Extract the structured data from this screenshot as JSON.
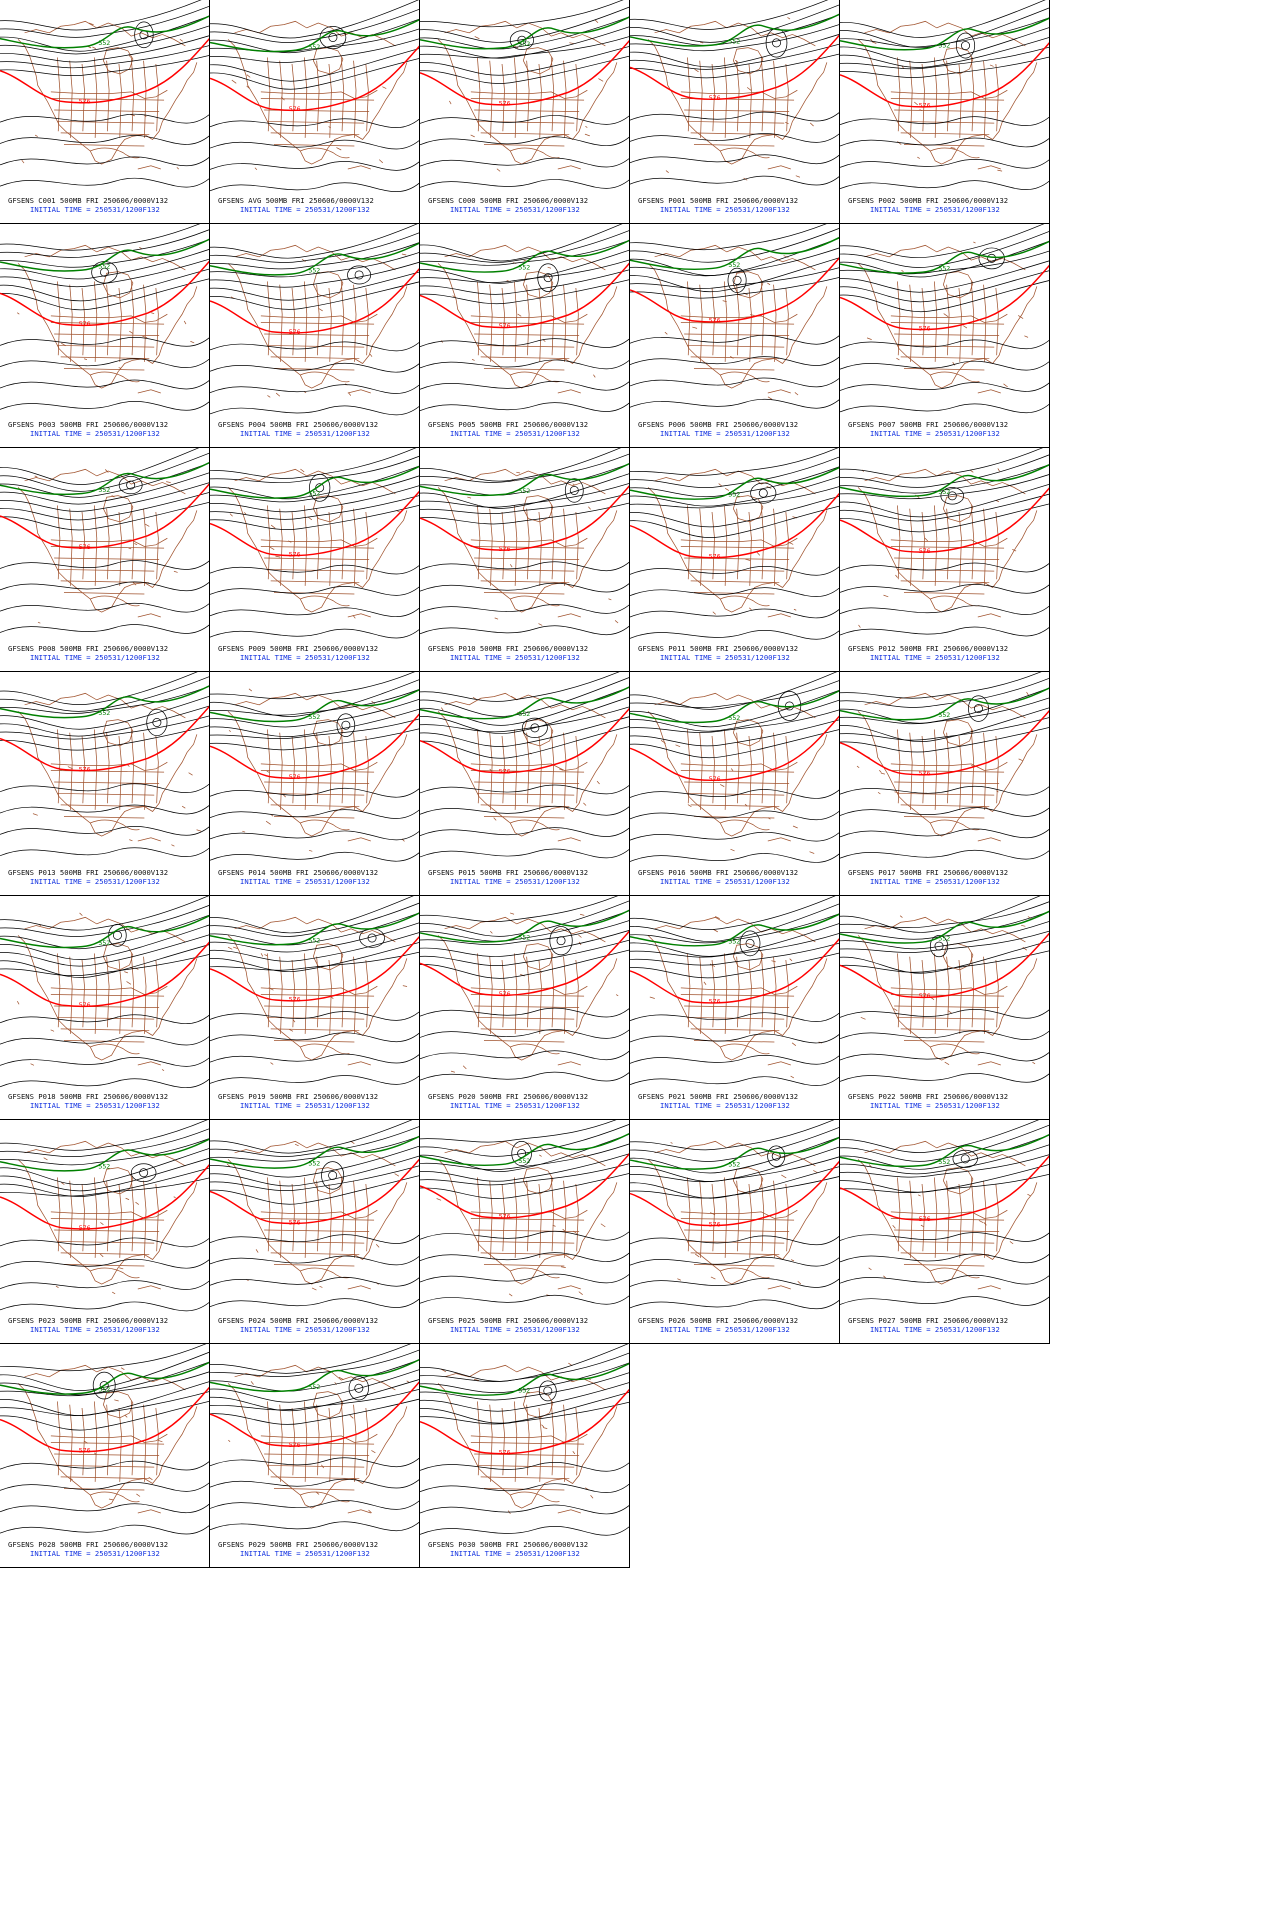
{
  "panels": [
    {
      "name": "C001",
      "line1": "GFSENS C001 500MB FRI 250606/0000V132",
      "line2": "INITIAL TIME = 250531/1200F132"
    },
    {
      "name": "AVG",
      "line1": "GFSENS AVG 500MB FRI 250606/0000V132",
      "line2": "INITIAL TIME = 250531/1200F132"
    },
    {
      "name": "C000",
      "line1": "GFSENS C000 500MB FRI 250606/0000V132",
      "line2": "INITIAL TIME = 250531/1200F132"
    },
    {
      "name": "P001",
      "line1": "GFSENS P001 500MB FRI 250606/0000V132",
      "line2": "INITIAL TIME = 250531/1200F132"
    },
    {
      "name": "P002",
      "line1": "GFSENS P002 500MB FRI 250606/0000V132",
      "line2": "INITIAL TIME = 250531/1200F132"
    },
    {
      "name": "P003",
      "line1": "GFSENS P003 500MB FRI 250606/0000V132",
      "line2": "INITIAL TIME = 250531/1200F132"
    },
    {
      "name": "P004",
      "line1": "GFSENS P004 500MB FRI 250606/0000V132",
      "line2": "INITIAL TIME = 250531/1200F132"
    },
    {
      "name": "P005",
      "line1": "GFSENS P005 500MB FRI 250606/0000V132",
      "line2": "INITIAL TIME = 250531/1200F132"
    },
    {
      "name": "P006",
      "line1": "GFSENS P006 500MB FRI 250606/0000V132",
      "line2": "INITIAL TIME = 250531/1200F132"
    },
    {
      "name": "P007",
      "line1": "GFSENS P007 500MB FRI 250606/0000V132",
      "line2": "INITIAL TIME = 250531/1200F132"
    },
    {
      "name": "P008",
      "line1": "GFSENS P008 500MB FRI 250606/0000V132",
      "line2": "INITIAL TIME = 250531/1200F132"
    },
    {
      "name": "P009",
      "line1": "GFSENS P009 500MB FRI 250606/0000V132",
      "line2": "INITIAL TIME = 250531/1200F132"
    },
    {
      "name": "P010",
      "line1": "GFSENS P010 500MB FRI 250606/0000V132",
      "line2": "INITIAL TIME = 250531/1200F132"
    },
    {
      "name": "P011",
      "line1": "GFSENS P011 500MB FRI 250606/0000V132",
      "line2": "INITIAL TIME = 250531/1200F132"
    },
    {
      "name": "P012",
      "line1": "GFSENS P012 500MB FRI 250606/0000V132",
      "line2": "INITIAL TIME = 250531/1200F132"
    },
    {
      "name": "P013",
      "line1": "GFSENS P013 500MB FRI 250606/0000V132",
      "line2": "INITIAL TIME = 250531/1200F132"
    },
    {
      "name": "P014",
      "line1": "GFSENS P014 500MB FRI 250606/0000V132",
      "line2": "INITIAL TIME = 250531/1200F132"
    },
    {
      "name": "P015",
      "line1": "GFSENS P015 500MB FRI 250606/0000V132",
      "line2": "INITIAL TIME = 250531/1200F132"
    },
    {
      "name": "P016",
      "line1": "GFSENS P016 500MB FRI 250606/0000V132",
      "line2": "INITIAL TIME = 250531/1200F132"
    },
    {
      "name": "P017",
      "line1": "GFSENS P017 500MB FRI 250606/0000V132",
      "line2": "INITIAL TIME = 250531/1200F132"
    },
    {
      "name": "P018",
      "line1": "GFSENS P018 500MB FRI 250606/0000V132",
      "line2": "INITIAL TIME = 250531/1200F132"
    },
    {
      "name": "P019",
      "line1": "GFSENS P019 500MB FRI 250606/0000V132",
      "line2": "INITIAL TIME = 250531/1200F132"
    },
    {
      "name": "P020",
      "line1": "GFSENS P020 500MB FRI 250606/0000V132",
      "line2": "INITIAL TIME = 250531/1200F132"
    },
    {
      "name": "P021",
      "line1": "GFSENS P021 500MB FRI 250606/0000V132",
      "line2": "INITIAL TIME = 250531/1200F132"
    },
    {
      "name": "P022",
      "line1": "GFSENS P022 500MB FRI 250606/0000V132",
      "line2": "INITIAL TIME = 250531/1200F132"
    },
    {
      "name": "P023",
      "line1": "GFSENS P023 500MB FRI 250606/0000V132",
      "line2": "INITIAL TIME = 250531/1200F132"
    },
    {
      "name": "P024",
      "line1": "GFSENS P024 500MB FRI 250606/0000V132",
      "line2": "INITIAL TIME = 250531/1200F132"
    },
    {
      "name": "P025",
      "line1": "GFSENS P025 500MB FRI 250606/0000V132",
      "line2": "INITIAL TIME = 250531/1200F132"
    },
    {
      "name": "P026",
      "line1": "GFSENS P026 500MB FRI 250606/0000V132",
      "line2": "INITIAL TIME = 250531/1200F132"
    },
    {
      "name": "P027",
      "line1": "GFSENS P027 500MB FRI 250606/0000V132",
      "line2": "INITIAL TIME = 250531/1200F132"
    },
    {
      "name": "P028",
      "line1": "GFSENS P028 500MB FRI 250606/0000V132",
      "line2": "INITIAL TIME = 250531/1200F132"
    },
    {
      "name": "P029",
      "line1": "GFSENS P029 500MB FRI 250606/0000V132",
      "line2": "INITIAL TIME = 250531/1200F132"
    },
    {
      "name": "P030",
      "line1": "GFSENS P030 500MB FRI 250606/0000V132",
      "line2": "INITIAL TIME = 250531/1200F132"
    }
  ],
  "contour_labels": {
    "green": "552",
    "red": "576"
  },
  "colors": {
    "contour": "#000000",
    "contour_552": "#008000",
    "contour_576": "#ff0000",
    "map_outline": "#a0522d",
    "caption_line1": "#111111",
    "caption_line2": "#1030e0",
    "border": "#000000"
  }
}
